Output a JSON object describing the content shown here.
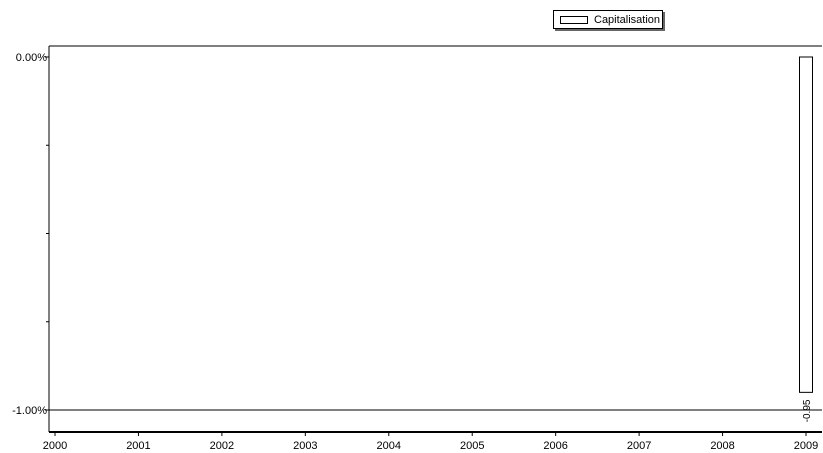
{
  "chart_data": {
    "type": "bar",
    "legend": "Capitalisation",
    "legend_position": "top-right",
    "x_ticks": [
      "2000",
      "2001",
      "2002",
      "2003",
      "2004",
      "2005",
      "2006",
      "2007",
      "2008",
      "2009"
    ],
    "y_ticks": [
      "0.00%",
      "-1.00%"
    ],
    "ylim": [
      -1.05,
      0.02
    ],
    "series": [
      {
        "name": "Capitalisation",
        "points": [
          {
            "x": "2009",
            "value": -0.95,
            "label": "-0.95"
          }
        ]
      }
    ],
    "grid": false
  }
}
